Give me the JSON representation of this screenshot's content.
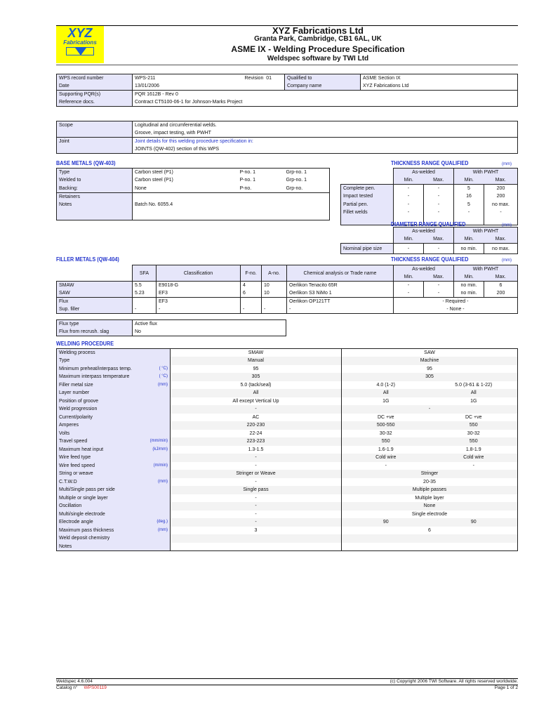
{
  "header": {
    "logo_text": [
      "XYZ",
      "Fabrications"
    ],
    "company": "XYZ Fabrications Ltd",
    "address": "Granta Park,  Cambridge,  CB1 6AL, UK",
    "doc_title": "ASME IX - Welding Procedure Specification",
    "software": "Weldspec software by TWI Ltd"
  },
  "record": {
    "wps_label": "WPS record number",
    "wps": "WPS-211",
    "revision_label": "Revision",
    "revision": "01",
    "date_label": "Date",
    "date": "13/01/2006",
    "qualified_label": "Qualified to",
    "qualified": "ASME Section IX",
    "company_label": "Company name",
    "company": "XYZ Fabrications Ltd",
    "pqr_label": "Supporting PQR(s)",
    "pqr": "PQR 1612B - Rev 0",
    "ref_label": "Reference docs.",
    "ref": "Contract CT5100-06-1 for Johnson-Marks Project"
  },
  "scope": {
    "scope_label": "Scope",
    "scope1": "Logitudinal and circumferential welds.",
    "scope2": "Groove, impact testing, with PWHT",
    "joint_label": "Joint",
    "joint1": "Joint details for this welding procedure specification in:",
    "joint2": "JOINTS (QW-402) section of this WPS"
  },
  "base": {
    "title": "BASE METALS (QW-403)",
    "rows": [
      {
        "label": "Type",
        "value": "Carbon steel (P1)",
        "pno": "P-no.  1",
        "grp": "Grp-no.  1"
      },
      {
        "label": "Welded to",
        "value": "Carbon steel (P1)",
        "pno": "P-no.  1",
        "grp": "Grp-no.  1"
      },
      {
        "label": "Backing:",
        "value": "None",
        "pno": "P-no.",
        "grp": "Grp-no."
      }
    ],
    "retainers_label": "Retainers",
    "notes_label": "Notes",
    "notes": "Batch No. 6055.4"
  },
  "thickness": {
    "title": "THICKNESS RANGE QUALIFIED",
    "unit": "(mm)",
    "as_welded": "As-welded",
    "pwht": "With PWHT",
    "min": "Min.",
    "max": "Max.",
    "rows": [
      {
        "label": "Complete pen.",
        "v": [
          "-",
          "-",
          "5",
          "200"
        ]
      },
      {
        "label": "Impact tested",
        "v": [
          "-",
          "-",
          "16",
          "200"
        ]
      },
      {
        "label": "Partial pen.",
        "v": [
          "-",
          "-",
          "5",
          "no max."
        ]
      },
      {
        "label": "Fillet welds",
        "v": [
          "-",
          "-",
          "-",
          "-"
        ]
      }
    ]
  },
  "diameter": {
    "title": "DIAMETER RANGE QUALIFIED",
    "unit": "(mm)",
    "label": "Nominal pipe size",
    "v": [
      "-",
      "-",
      "no min.",
      "no max."
    ]
  },
  "filler": {
    "title": "FILLER METALS (QW-404)",
    "thk_title": "THICKNESS RANGE QUALIFIED",
    "unit": "(mm)",
    "headers": [
      "SFA",
      "Classification",
      "F-no.",
      "A-no.",
      "Chemical analysis or Trade name"
    ],
    "rows": [
      {
        "label": "SMAW",
        "sfa": "5.5",
        "cls": "E9018-G",
        "fno": "4",
        "ano": "10",
        "chem": "Oerlikon Tenacito 65R",
        "v": [
          "-",
          "-",
          "no min.",
          "6"
        ]
      },
      {
        "label": "SAW",
        "sfa": "5.23",
        "cls": "EF3",
        "fno": "6",
        "ano": "10",
        "chem": "Oerlikon S3 NiMo 1",
        "v": [
          "-",
          "-",
          "no min.",
          "200"
        ]
      }
    ],
    "flux": {
      "label": "Flux",
      "sfa": "",
      "cls": "EF3",
      "fno": "",
      "ano": "",
      "chem": "Oerlikon OP121TT",
      "range": "- Required -"
    },
    "sup": {
      "label": "Sup. filler",
      "sfa": "-",
      "cls": "-",
      "fno": "-",
      "ano": "-",
      "chem": "-",
      "range": "- None -"
    },
    "flux_type_label": "Flux type",
    "flux_type": "Active flux",
    "recrush_label": "Flux from recrush. slag",
    "recrush": "No"
  },
  "procedure": {
    "title": "WELDING PROCEDURE",
    "rows": [
      {
        "label": "Welding process",
        "unit": "",
        "smaw": "SMAW",
        "saw": "SAW"
      },
      {
        "label": "Type",
        "unit": "",
        "smaw": "Manual",
        "saw": "Machine"
      },
      {
        "label": "Minimum preheat/interpass temp.",
        "unit": "( °C)",
        "smaw": "95",
        "saw": "95"
      },
      {
        "label": "Maximum interpass temperature",
        "unit": "( °C)",
        "smaw": "305",
        "saw": "305"
      },
      {
        "label": "Filler metal size",
        "unit": "(mm)",
        "smaw": "5.0 (tack/seal)",
        "saw": [
          "4.0 (1-2)",
          "5.0 (3-61 & 1-22)"
        ]
      },
      {
        "label": "Layer number",
        "unit": "",
        "smaw": "All",
        "saw": [
          "All",
          "All"
        ]
      },
      {
        "label": "Position of groove",
        "unit": "",
        "smaw": "All except Vertical Up",
        "saw": [
          "1G",
          "1G"
        ]
      },
      {
        "label": "Weld progression",
        "unit": "",
        "smaw": "-",
        "saw": "-"
      },
      {
        "label": "Current/polarity",
        "unit": "",
        "smaw": "AC",
        "saw": [
          "DC +ve",
          "DC +ve"
        ]
      },
      {
        "label": "Amperes",
        "unit": "",
        "smaw": "220-230",
        "saw": [
          "500-550",
          "550"
        ]
      },
      {
        "label": "Volts",
        "unit": "",
        "smaw": "22-24",
        "saw": [
          "30-32",
          "30-32"
        ]
      },
      {
        "label": "Travel speed",
        "unit": "(mm/min)",
        "smaw": "223-223",
        "saw": [
          "550",
          "550"
        ]
      },
      {
        "label": "Maximum heat input",
        "unit": "(kJ/mm)",
        "smaw": "1.3-1.5",
        "saw": [
          "1.6-1.9",
          "1.8-1.9"
        ]
      },
      {
        "label": "Wire feed type",
        "unit": "",
        "smaw": "-",
        "saw": [
          "Cold wire",
          "Cold wire"
        ]
      },
      {
        "label": "Wire feed speed",
        "unit": "(m/min)",
        "smaw": "-",
        "saw": [
          "-",
          "-"
        ]
      },
      {
        "label": "String or weave",
        "unit": "",
        "smaw": "Stringer or Weave",
        "saw": "Stringer"
      },
      {
        "label": "C.T.W.D",
        "unit": "(mm)",
        "smaw": "-",
        "saw": "20-35"
      },
      {
        "label": "Multi/Single pass per side",
        "unit": "",
        "smaw": "Single pass",
        "saw": "Multiple passes"
      },
      {
        "label": "Multiple or single layer",
        "unit": "",
        "smaw": "-",
        "saw": "Multiple layer"
      },
      {
        "label": "Oscillation",
        "unit": "",
        "smaw": "-",
        "saw": "None"
      },
      {
        "label": "Multi/single electrode",
        "unit": "",
        "smaw": "-",
        "saw": "Single electrode"
      },
      {
        "label": "Electrode angle",
        "unit": "(deg.)",
        "smaw": "-",
        "saw": [
          "90",
          "90"
        ]
      },
      {
        "label": "Maximum pass thickness",
        "unit": "(mm)",
        "smaw": "3",
        "saw": "6"
      },
      {
        "label": "Weld deposit chemistry",
        "unit": "",
        "smaw": "",
        "saw": ""
      },
      {
        "label": "Notes",
        "unit": "",
        "smaw": "",
        "saw": ""
      }
    ]
  },
  "footer": {
    "version": "Weldspec 4.6.004",
    "copyright": "(c) Copyright 2006 TWI Software. All rights reserved worldwide.",
    "catalog_label": "Catalog n°",
    "catalog": "WPS00119",
    "page": "Page 1  of  2"
  },
  "colors": {
    "label_bg": "#e6e6fa",
    "accent": "#2233cc",
    "logo_bg": "#ffff00",
    "catalog": "#dd2222"
  }
}
